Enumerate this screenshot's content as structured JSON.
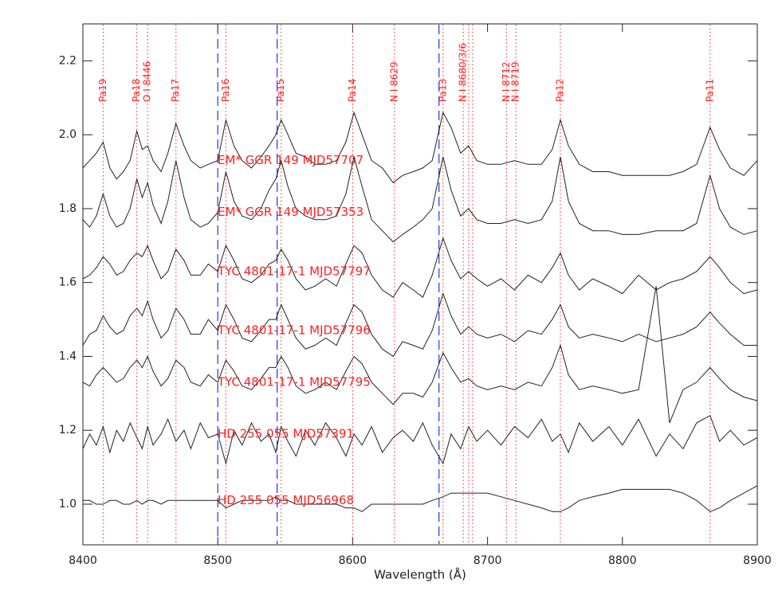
{
  "chart_data": {
    "type": "line",
    "xlabel": "Wavelength (Å)",
    "x": [
      8400,
      8405,
      8410,
      8415,
      8420,
      8425,
      8430,
      8435,
      8440,
      8444,
      8448,
      8452,
      8458,
      8463,
      8469,
      8475,
      8480,
      8487,
      8493,
      8500,
      8506,
      8512,
      8518,
      8525,
      8532,
      8538,
      8543,
      8547,
      8552,
      8558,
      8565,
      8572,
      8580,
      8588,
      8595,
      8601,
      8607,
      8614,
      8622,
      8630,
      8637,
      8645,
      8652,
      8659,
      8667,
      8673,
      8680,
      8686,
      8692,
      8700,
      8710,
      8720,
      8730,
      8740,
      8748,
      8754,
      8760,
      8768,
      8778,
      8790,
      8800,
      8812,
      8825,
      8835,
      8845,
      8855,
      8865,
      8872,
      8880,
      8890,
      8900
    ],
    "series": [
      {
        "name": "EM* GGR 149 MJD57707",
        "color": "#222222",
        "values": [
          1.91,
          1.93,
          1.95,
          1.98,
          1.91,
          1.88,
          1.9,
          1.93,
          2.01,
          1.96,
          1.97,
          1.93,
          1.9,
          1.95,
          2.03,
          1.97,
          1.93,
          1.91,
          1.92,
          1.93,
          2.04,
          1.97,
          1.93,
          1.91,
          1.94,
          1.97,
          2.0,
          2.04,
          2.0,
          1.95,
          1.94,
          1.92,
          1.92,
          1.93,
          1.98,
          2.06,
          2.0,
          1.93,
          1.91,
          1.87,
          1.89,
          1.9,
          1.91,
          1.93,
          2.06,
          2.02,
          1.95,
          1.97,
          1.93,
          1.92,
          1.92,
          1.93,
          1.92,
          1.92,
          1.96,
          2.04,
          1.97,
          1.92,
          1.9,
          1.9,
          1.89,
          1.89,
          1.89,
          1.89,
          1.9,
          1.92,
          2.02,
          1.96,
          1.91,
          1.89,
          1.93
        ]
      },
      {
        "name": "EM* GGR 149 MJD57353",
        "color": "#222222",
        "values": [
          1.77,
          1.75,
          1.78,
          1.84,
          1.78,
          1.75,
          1.76,
          1.8,
          1.88,
          1.83,
          1.87,
          1.81,
          1.76,
          1.82,
          1.93,
          1.83,
          1.77,
          1.75,
          1.76,
          1.79,
          1.9,
          1.82,
          1.78,
          1.77,
          1.8,
          1.85,
          1.88,
          1.93,
          1.86,
          1.8,
          1.78,
          1.77,
          1.77,
          1.78,
          1.84,
          1.94,
          1.86,
          1.77,
          1.74,
          1.71,
          1.73,
          1.75,
          1.77,
          1.8,
          1.94,
          1.85,
          1.78,
          1.8,
          1.77,
          1.76,
          1.76,
          1.77,
          1.76,
          1.77,
          1.82,
          1.94,
          1.82,
          1.76,
          1.74,
          1.74,
          1.73,
          1.73,
          1.74,
          1.74,
          1.74,
          1.76,
          1.89,
          1.8,
          1.75,
          1.73,
          1.74
        ]
      },
      {
        "name": "TYC 4801-17-1 MJD57797",
        "color": "#222222",
        "values": [
          1.61,
          1.62,
          1.64,
          1.67,
          1.65,
          1.62,
          1.63,
          1.66,
          1.68,
          1.67,
          1.7,
          1.66,
          1.61,
          1.63,
          1.69,
          1.66,
          1.62,
          1.62,
          1.65,
          1.63,
          1.7,
          1.66,
          1.61,
          1.6,
          1.62,
          1.65,
          1.66,
          1.69,
          1.66,
          1.61,
          1.58,
          1.59,
          1.61,
          1.59,
          1.65,
          1.7,
          1.68,
          1.62,
          1.58,
          1.56,
          1.6,
          1.58,
          1.56,
          1.62,
          1.72,
          1.66,
          1.61,
          1.63,
          1.61,
          1.59,
          1.61,
          1.58,
          1.62,
          1.6,
          1.64,
          1.68,
          1.62,
          1.58,
          1.61,
          1.59,
          1.57,
          1.62,
          1.58,
          1.6,
          1.61,
          1.63,
          1.67,
          1.64,
          1.6,
          1.57,
          1.58
        ]
      },
      {
        "name": "TYC 4801-17-1 MJD57796",
        "color": "#222222",
        "values": [
          1.43,
          1.46,
          1.47,
          1.51,
          1.48,
          1.46,
          1.47,
          1.51,
          1.53,
          1.51,
          1.55,
          1.5,
          1.45,
          1.47,
          1.53,
          1.5,
          1.46,
          1.46,
          1.5,
          1.47,
          1.54,
          1.5,
          1.45,
          1.44,
          1.47,
          1.5,
          1.5,
          1.54,
          1.5,
          1.45,
          1.42,
          1.43,
          1.45,
          1.43,
          1.49,
          1.54,
          1.52,
          1.46,
          1.42,
          1.4,
          1.44,
          1.43,
          1.42,
          1.47,
          1.57,
          1.51,
          1.46,
          1.48,
          1.46,
          1.45,
          1.46,
          1.44,
          1.47,
          1.46,
          1.5,
          1.54,
          1.48,
          1.45,
          1.46,
          1.45,
          1.44,
          1.46,
          1.44,
          1.45,
          1.46,
          1.48,
          1.52,
          1.49,
          1.46,
          1.43,
          1.43
        ]
      },
      {
        "name": "TYC 4801-17-1 MJD57795",
        "color": "#222222",
        "values": [
          1.33,
          1.32,
          1.35,
          1.37,
          1.35,
          1.33,
          1.34,
          1.37,
          1.39,
          1.37,
          1.4,
          1.36,
          1.32,
          1.34,
          1.39,
          1.37,
          1.33,
          1.32,
          1.35,
          1.33,
          1.39,
          1.36,
          1.32,
          1.31,
          1.34,
          1.37,
          1.37,
          1.4,
          1.37,
          1.32,
          1.3,
          1.31,
          1.33,
          1.31,
          1.36,
          1.4,
          1.38,
          1.33,
          1.3,
          1.27,
          1.3,
          1.3,
          1.29,
          1.33,
          1.41,
          1.37,
          1.33,
          1.34,
          1.32,
          1.31,
          1.32,
          1.31,
          1.33,
          1.32,
          1.37,
          1.43,
          1.35,
          1.31,
          1.32,
          1.31,
          1.3,
          1.31,
          1.59,
          1.22,
          1.31,
          1.33,
          1.37,
          1.34,
          1.31,
          1.29,
          1.28
        ]
      },
      {
        "name": "HD 255 055 MJD57391",
        "color": "#222222",
        "values": [
          1.15,
          1.19,
          1.16,
          1.21,
          1.14,
          1.2,
          1.17,
          1.22,
          1.18,
          1.15,
          1.21,
          1.16,
          1.19,
          1.23,
          1.17,
          1.2,
          1.15,
          1.22,
          1.18,
          1.19,
          1.11,
          1.2,
          1.16,
          1.22,
          1.17,
          1.19,
          1.14,
          1.21,
          1.17,
          1.13,
          1.2,
          1.16,
          1.22,
          1.18,
          1.13,
          1.19,
          1.16,
          1.21,
          1.14,
          1.18,
          1.2,
          1.17,
          1.22,
          1.16,
          1.11,
          1.19,
          1.15,
          1.21,
          1.17,
          1.2,
          1.16,
          1.21,
          1.18,
          1.23,
          1.17,
          1.19,
          1.14,
          1.22,
          1.17,
          1.21,
          1.16,
          1.23,
          1.13,
          1.19,
          1.15,
          1.22,
          1.24,
          1.17,
          1.2,
          1.16,
          1.18
        ]
      },
      {
        "name": "HD 255 055 MJD56968",
        "color": "#222222",
        "values": [
          1.01,
          1.01,
          1.0,
          1.0,
          1.01,
          1.01,
          1.0,
          1.0,
          1.01,
          1.0,
          1.01,
          1.01,
          1.0,
          1.01,
          1.01,
          1.01,
          1.01,
          1.01,
          1.01,
          1.01,
          0.99,
          1.0,
          1.01,
          1.01,
          1.01,
          1.01,
          1.02,
          1.01,
          1.01,
          1.0,
          1.0,
          1.0,
          1.0,
          1.0,
          0.99,
          0.99,
          0.98,
          1.0,
          1.0,
          1.0,
          1.0,
          1.0,
          1.0,
          1.01,
          1.02,
          1.03,
          1.03,
          1.03,
          1.03,
          1.03,
          1.02,
          1.01,
          1.0,
          0.99,
          0.98,
          0.98,
          0.99,
          1.01,
          1.02,
          1.03,
          1.04,
          1.04,
          1.04,
          1.04,
          1.03,
          1.01,
          0.98,
          0.99,
          1.01,
          1.03,
          1.05
        ]
      }
    ],
    "reference_lines": [
      {
        "label": "Pa19",
        "x": [
          8415
        ]
      },
      {
        "label": "Pa18",
        "x": [
          8440
        ]
      },
      {
        "label": "O I 8446",
        "x": [
          8448
        ]
      },
      {
        "label": "Pa17",
        "x": [
          8469
        ]
      },
      {
        "label": "Pa16",
        "x": [
          8506
        ]
      },
      {
        "label": "Pa15",
        "x": [
          8547
        ]
      },
      {
        "label": "Pa14",
        "x": [
          8600
        ]
      },
      {
        "label": "N I 8629",
        "x": [
          8631
        ]
      },
      {
        "label": "Pa13",
        "x": [
          8667
        ]
      },
      {
        "label": "N I 8680/3/6",
        "x": [
          8682,
          8686,
          8689
        ]
      },
      {
        "label": "N I 8712",
        "x": [
          8714
        ]
      },
      {
        "label": "N I 8719",
        "x": [
          8721
        ]
      },
      {
        "label": "Pa12",
        "x": [
          8754
        ]
      },
      {
        "label": "Pa11",
        "x": [
          8865
        ]
      }
    ],
    "reference_color": "#ff2020",
    "dashed_lines_x": [
      8500,
      8544,
      8664
    ],
    "dashed_color": "#3344ee",
    "xlim": [
      8400,
      8900
    ],
    "xticks": [
      8400,
      8500,
      8600,
      8700,
      8800,
      8900
    ],
    "ylim": [
      0.89,
      2.3
    ],
    "yticks": [
      {
        "value": 1,
        "label": "1.0"
      },
      1.2,
      1.4,
      1.6,
      1.8,
      {
        "value": 2,
        "label": "2.0"
      },
      2.2
    ]
  }
}
